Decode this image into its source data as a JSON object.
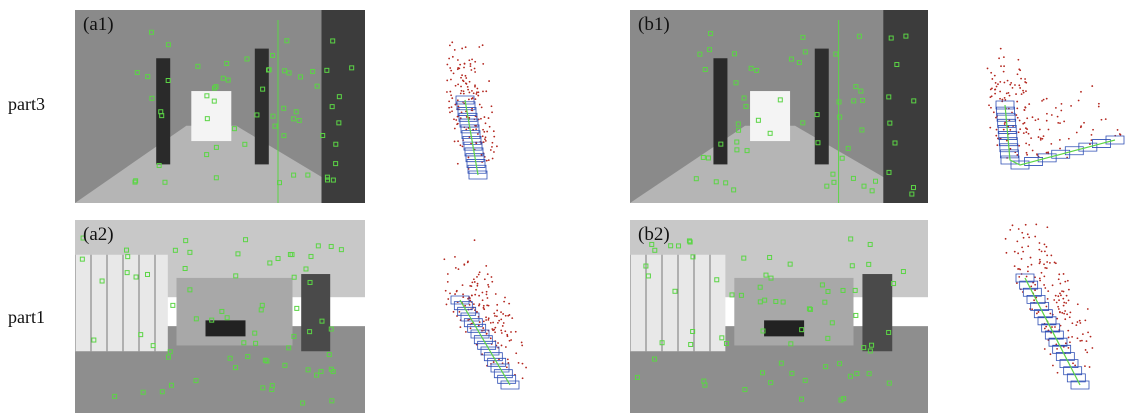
{
  "rows": [
    {
      "label": "part3",
      "panels": [
        "(a1)",
        "(b1)"
      ]
    },
    {
      "label": "part1",
      "panels": [
        "(a2)",
        "(b2)"
      ]
    }
  ]
}
